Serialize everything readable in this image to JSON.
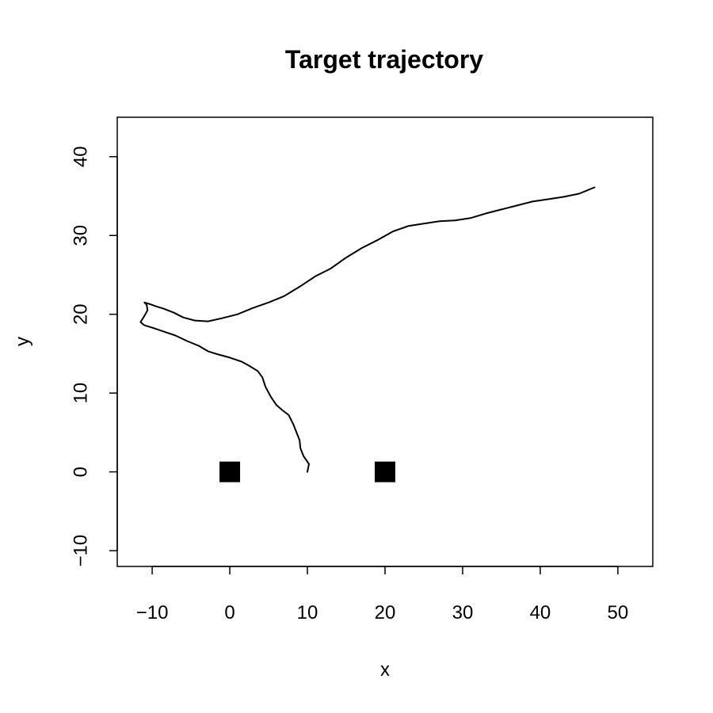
{
  "chart_data": {
    "type": "line",
    "title": "Target trajectory",
    "xlabel": "x",
    "ylabel": "y",
    "xlim": [
      -14.5,
      54.5
    ],
    "ylim": [
      -12,
      45
    ],
    "xticks": [
      -10,
      0,
      10,
      20,
      30,
      40,
      50
    ],
    "yticks": [
      -10,
      0,
      10,
      20,
      30,
      40
    ],
    "xtick_labels": [
      "−10",
      "0",
      "10",
      "20",
      "30",
      "40",
      "50"
    ],
    "ytick_labels": [
      "−10",
      "0",
      "10",
      "20",
      "30",
      "40"
    ],
    "grid": false,
    "series": [
      {
        "values": [
          [
            10.0,
            0.0
          ],
          [
            10.2,
            1.0
          ],
          [
            9.5,
            2.0
          ],
          [
            9.1,
            3.0
          ],
          [
            9.0,
            4.0
          ],
          [
            8.6,
            5.0
          ],
          [
            8.2,
            6.0
          ],
          [
            7.6,
            7.2
          ],
          [
            6.8,
            7.8
          ],
          [
            6.0,
            8.5
          ],
          [
            5.3,
            9.5
          ],
          [
            4.6,
            10.8
          ],
          [
            4.2,
            12.0
          ],
          [
            3.6,
            12.8
          ],
          [
            2.6,
            13.4
          ],
          [
            1.5,
            14.0
          ],
          [
            0.0,
            14.5
          ],
          [
            -1.5,
            14.9
          ],
          [
            -2.8,
            15.3
          ],
          [
            -4.0,
            16.0
          ],
          [
            -5.5,
            16.6
          ],
          [
            -7.0,
            17.3
          ],
          [
            -8.5,
            17.8
          ],
          [
            -10.0,
            18.3
          ],
          [
            -11.0,
            18.6
          ],
          [
            -11.5,
            19.0
          ],
          [
            -11.0,
            19.8
          ],
          [
            -10.6,
            20.5
          ],
          [
            -10.7,
            21.2
          ],
          [
            -11.0,
            21.5
          ],
          [
            -10.3,
            21.3
          ],
          [
            -9.5,
            21.0
          ],
          [
            -8.5,
            20.7
          ],
          [
            -7.2,
            20.2
          ],
          [
            -6.0,
            19.6
          ],
          [
            -4.5,
            19.2
          ],
          [
            -2.8,
            19.1
          ],
          [
            -1.0,
            19.5
          ],
          [
            1.0,
            20.0
          ],
          [
            3.0,
            20.8
          ],
          [
            5.0,
            21.5
          ],
          [
            7.0,
            22.3
          ],
          [
            9.0,
            23.5
          ],
          [
            11.0,
            24.8
          ],
          [
            13.0,
            25.8
          ],
          [
            15.0,
            27.2
          ],
          [
            17.0,
            28.4
          ],
          [
            19.0,
            29.4
          ],
          [
            21.0,
            30.5
          ],
          [
            23.0,
            31.2
          ],
          [
            25.0,
            31.5
          ],
          [
            27.0,
            31.8
          ],
          [
            29.0,
            31.9
          ],
          [
            31.0,
            32.2
          ],
          [
            33.0,
            32.8
          ],
          [
            35.0,
            33.3
          ],
          [
            37.0,
            33.8
          ],
          [
            39.0,
            34.3
          ],
          [
            41.0,
            34.6
          ],
          [
            43.0,
            34.9
          ],
          [
            45.0,
            35.3
          ],
          [
            47.0,
            36.1
          ]
        ]
      }
    ],
    "markers": [
      {
        "x": 0,
        "y": 0,
        "shape": "square"
      },
      {
        "x": 20,
        "y": 0,
        "shape": "square"
      }
    ],
    "colors": {
      "line": "#000000",
      "marker": "#000000",
      "frame": "#000000"
    }
  }
}
